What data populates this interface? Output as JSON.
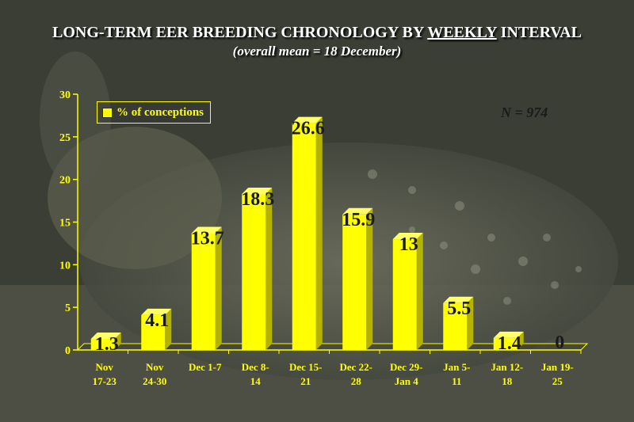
{
  "title": "LONG-TERM EER BREEDING CHRONOLOGY BY WEEKLY INTERVAL",
  "title_before": "LONG-TERM EER BREEDING CHRONOLOGY BY ",
  "title_underlined": "WEEKLY",
  "title_after": " INTERVAL",
  "subtitle": "(overall mean = 18 December)",
  "legend_label": "% of conceptions",
  "n_label": "N = 974",
  "colors": {
    "bar": "#ffff00",
    "text": "#ffff00",
    "title": "#ffffff",
    "data_label": "#1a1a1a"
  },
  "chart_data": {
    "type": "bar",
    "title": "LONG-TERM EER BREEDING CHRONOLOGY BY WEEKLY INTERVAL",
    "subtitle": "(overall mean = 18 December)",
    "categories": [
      [
        "Nov",
        "17-23"
      ],
      [
        "Nov",
        "24-30"
      ],
      [
        "Dec 1-7",
        ""
      ],
      [
        "Dec 8-",
        "14"
      ],
      [
        "Dec 15-",
        "21"
      ],
      [
        "Dec 22-",
        "28"
      ],
      [
        "Dec 29-",
        "Jan 4"
      ],
      [
        "Jan 5-",
        "11"
      ],
      [
        "Jan 12-",
        "18"
      ],
      [
        "Jan 19-",
        "25"
      ]
    ],
    "series": [
      {
        "name": "% of conceptions",
        "values": [
          1.3,
          4.1,
          13.7,
          18.3,
          26.6,
          15.9,
          13,
          5.5,
          1.4,
          0
        ]
      }
    ],
    "ylim": [
      0,
      30
    ],
    "yticks": [
      0,
      5,
      10,
      15,
      20,
      25,
      30
    ],
    "grid": false,
    "legend": "top-left"
  }
}
